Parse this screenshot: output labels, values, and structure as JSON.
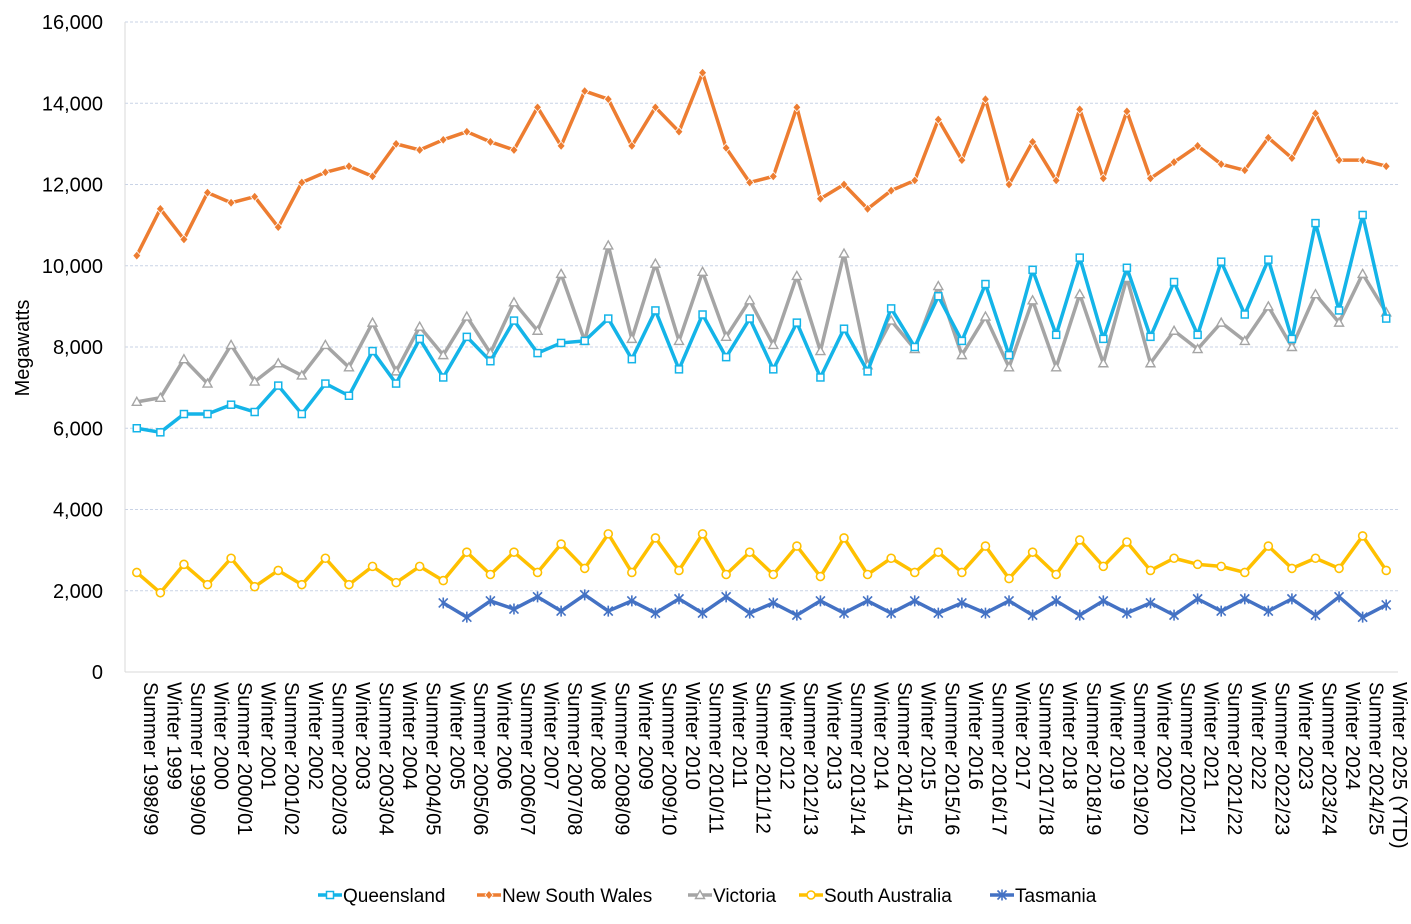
{
  "chart_data": {
    "type": "line",
    "title": "",
    "xlabel": "",
    "ylabel": "Megawatts",
    "ylim": [
      0,
      16000
    ],
    "yticks": [
      0,
      2000,
      4000,
      6000,
      8000,
      10000,
      12000,
      14000,
      16000
    ],
    "ytick_labels": [
      "0",
      "2,000",
      "4,000",
      "6,000",
      "8,000",
      "10,000",
      "12,000",
      "14,000",
      "16,000"
    ],
    "grid": true,
    "legend_position": "bottom",
    "categories": [
      "Summer 1998/99",
      "Winter 1999",
      "Summer 1999/00",
      "Winter 2000",
      "Summer 2000/01",
      "Winter 2001",
      "Summer 2001/02",
      "Winter 2002",
      "Summer 2002/03",
      "Winter 2003",
      "Summer 2003/04",
      "Winter 2004",
      "Summer 2004/05",
      "Winter 2005",
      "Summer 2005/06",
      "Winter 2006",
      "Summer 2006/07",
      "Winter 2007",
      "Summer 2007/08",
      "Winter 2008",
      "Summer 2008/09",
      "Winter 2009",
      "Summer 2009/10",
      "Winter 2010",
      "Summer 2010/11",
      "Winter 2011",
      "Summer 2011/12",
      "Winter 2012",
      "Summer 2012/13",
      "Winter 2013",
      "Summer 2013/14",
      "Winter 2014",
      "Summer 2014/15",
      "Winter 2015",
      "Summer 2015/16",
      "Winter 2016",
      "Summer 2016/17",
      "Winter 2017",
      "Summer 2017/18",
      "Winter 2018",
      "Summer 2018/19",
      "Winter 2019",
      "Summer 2019/20",
      "Winter 2020",
      "Summer 2020/21",
      "Winter 2021",
      "Summer 2021/22",
      "Winter 2022",
      "Summer 2022/23",
      "Winter 2023",
      "Summer 2023/24",
      "Winter 2024",
      "Summer 2024/25",
      "Winter 2025 (YTD)"
    ],
    "series": [
      {
        "name": "Queensland",
        "color": "#14B4E8",
        "marker": "square",
        "values": [
          6000,
          5900,
          6350,
          6350,
          6580,
          6400,
          7050,
          6350,
          7100,
          6800,
          7900,
          7100,
          8200,
          7250,
          8250,
          7650,
          8650,
          7850,
          8100,
          8150,
          8700,
          7700,
          8900,
          7450,
          8800,
          7750,
          8700,
          7450,
          8600,
          7250,
          8450,
          7400,
          8950,
          8000,
          9250,
          8150,
          9550,
          7800,
          9900,
          8300,
          10200,
          8200,
          9950,
          8250,
          9600,
          8300,
          10100,
          8800,
          10150,
          8200,
          11050,
          8900,
          11250,
          8700
        ]
      },
      {
        "name": "New South Wales",
        "color": "#ED7D31",
        "marker": "diamond",
        "values": [
          10250,
          11400,
          10650,
          11800,
          11550,
          11700,
          10950,
          12050,
          12300,
          12450,
          12200,
          13000,
          12850,
          13100,
          13300,
          13050,
          12850,
          13900,
          12950,
          14300,
          14100,
          12950,
          13900,
          13300,
          14750,
          12900,
          12050,
          12200,
          13900,
          11650,
          12000,
          11400,
          11850,
          12100,
          13600,
          12600,
          14100,
          12000,
          13050,
          12100,
          13850,
          12150,
          13800,
          12150,
          12550,
          12950,
          12500,
          12350,
          13150,
          12650,
          13750,
          12600,
          12600,
          12450
        ]
      },
      {
        "name": "Victoria",
        "color": "#A5A5A5",
        "marker": "triangle",
        "values": [
          6650,
          6750,
          7700,
          7100,
          8050,
          7150,
          7600,
          7300,
          8050,
          7500,
          8600,
          7400,
          8500,
          7800,
          8750,
          7850,
          9100,
          8400,
          9800,
          8150,
          10500,
          8200,
          10050,
          8150,
          9850,
          8250,
          9150,
          8050,
          9750,
          7900,
          10300,
          7550,
          8650,
          7950,
          9500,
          7800,
          8750,
          7500,
          9150,
          7500,
          9300,
          7600,
          9700,
          7600,
          8400,
          7950,
          8600,
          8150,
          9000,
          8000,
          9300,
          8600,
          9800,
          8850
        ]
      },
      {
        "name": "South Australia",
        "color": "#FFC000",
        "marker": "circle",
        "values": [
          2450,
          1950,
          2650,
          2150,
          2800,
          2100,
          2500,
          2150,
          2800,
          2150,
          2600,
          2200,
          2600,
          2250,
          2950,
          2400,
          2950,
          2450,
          3150,
          2550,
          3400,
          2450,
          3300,
          2500,
          3400,
          2400,
          2950,
          2400,
          3100,
          2350,
          3300,
          2400,
          2800,
          2450,
          2950,
          2450,
          3100,
          2300,
          2950,
          2400,
          3250,
          2600,
          3200,
          2500,
          2800,
          2650,
          2600,
          2450,
          3100,
          2550,
          2800,
          2550,
          3350,
          2500
        ]
      },
      {
        "name": "Tasmania",
        "color": "#4472C4",
        "marker": "star",
        "values": [
          null,
          null,
          null,
          null,
          null,
          null,
          null,
          null,
          null,
          null,
          null,
          null,
          null,
          1700,
          1350,
          1750,
          1550,
          1850,
          1500,
          1900,
          1500,
          1750,
          1450,
          1800,
          1450,
          1850,
          1450,
          1700,
          1400,
          1750,
          1450,
          1750,
          1450,
          1750,
          1450,
          1700,
          1450,
          1750,
          1400,
          1750,
          1400,
          1750,
          1450,
          1700,
          1400,
          1800,
          1500,
          1800,
          1500,
          1800,
          1400,
          1850,
          1350,
          1650
        ]
      }
    ]
  }
}
